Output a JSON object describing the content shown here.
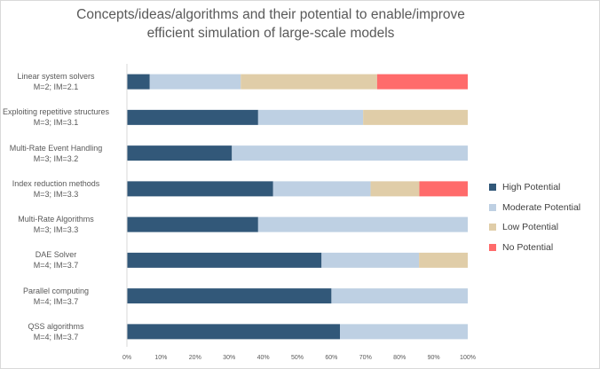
{
  "chart_data": {
    "type": "bar",
    "orientation": "horizontal",
    "stacked": "percent",
    "title": "Concepts/ideas/algorithms and their potential to enable/improve efficient simulation of large-scale models",
    "categories": [
      [
        "Linear system solvers",
        "M=2; IM=2.1"
      ],
      [
        "Exploiting repetitive structures",
        "M=3; IM=3.1"
      ],
      [
        "Multi-Rate Event Handling",
        "M=3; IM=3.2"
      ],
      [
        "Index reduction methods",
        "M=3; IM=3.3"
      ],
      [
        "Multi-Rate Algorithms",
        "M=3; IM=3.3"
      ],
      [
        "DAE Solver",
        "M=4; IM=3.7"
      ],
      [
        "Parallel computing",
        "M=4; IM=3.7"
      ],
      [
        "QSS algorithms",
        "M=4; IM=3.7"
      ]
    ],
    "series": [
      {
        "name": "High Potential",
        "color": "#325879",
        "values": [
          6.7,
          38.5,
          30.8,
          42.9,
          38.5,
          57.1,
          60.0,
          62.5
        ]
      },
      {
        "name": "Moderate Potential",
        "color": "#bed0e3",
        "values": [
          26.7,
          30.8,
          69.2,
          28.6,
          61.5,
          28.6,
          40.0,
          37.5
        ]
      },
      {
        "name": "Low Potential",
        "color": "#e0cda8",
        "values": [
          40.0,
          30.7,
          0,
          14.3,
          0,
          14.3,
          0,
          0
        ]
      },
      {
        "name": "No Potential",
        "color": "#ff6b6b",
        "values": [
          26.6,
          0,
          0,
          14.2,
          0,
          0,
          0,
          0
        ]
      }
    ],
    "xlim": [
      0,
      100
    ],
    "x_ticks": [
      "0%",
      "10%",
      "20%",
      "30%",
      "40%",
      "50%",
      "60%",
      "70%",
      "80%",
      "90%",
      "100%"
    ],
    "grid": false,
    "legend_position": "right"
  }
}
